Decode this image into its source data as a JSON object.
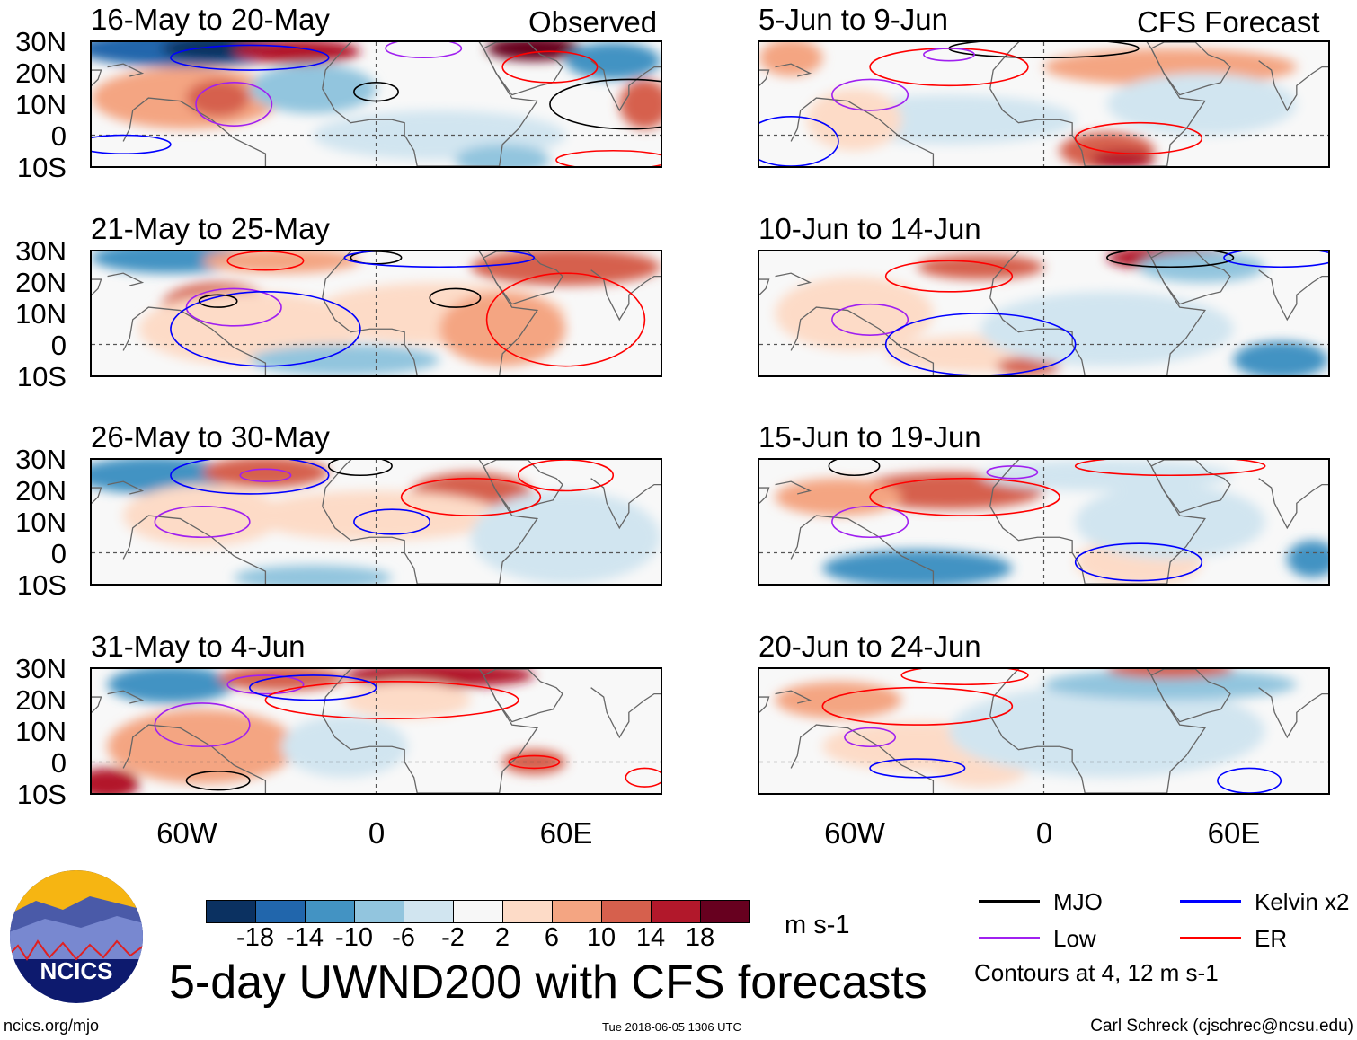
{
  "title": "5-day UWND200 with CFS forecasts",
  "units": "m s-1",
  "site": "ncics.org/mjo",
  "logo_text": "NCICS",
  "timestamp": "Tue 2018-06-05 1306 UTC",
  "author": "Carl Schreck (cjschrec@ncsu.edu)",
  "chart_data": {
    "type": "heatmap",
    "variable": "200-hPa zonal wind anomaly",
    "observed_label": "Observed",
    "forecast_label": "CFS Forecast",
    "panels_observed": [
      "16-May to 20-May",
      "21-May to 25-May",
      "26-May to 30-May",
      "31-May to 4-Jun"
    ],
    "panels_forecast": [
      "5-Jun to 9-Jun",
      "10-Jun to 14-Jun",
      "15-Jun to 19-Jun",
      "20-Jun to 24-Jun"
    ],
    "lat_ticks": [
      "30N",
      "20N",
      "10N",
      "0",
      "10S"
    ],
    "lon_ticks": [
      "60W",
      "0",
      "60E"
    ],
    "lat_range": [
      -10,
      30
    ],
    "lon_range": [
      -90,
      90
    ],
    "colorbar_levels": [
      "-18",
      "-14",
      "-10",
      "-6",
      "-2",
      "2",
      "6",
      "10",
      "14",
      "18"
    ],
    "colorbar_colors": [
      "#0b3161",
      "#2166ac",
      "#4393c3",
      "#92c5de",
      "#d1e5f0",
      "#f7f7f7",
      "#fddbc7",
      "#f4a582",
      "#d6604d",
      "#b2182b",
      "#67001f"
    ],
    "legend": [
      {
        "label": "MJO",
        "color": "#000000"
      },
      {
        "label": "Kelvin x2",
        "color": "#0000ff"
      },
      {
        "label": "Low",
        "color": "#a020f0"
      },
      {
        "label": "ER",
        "color": "#ff0000"
      }
    ],
    "contour_note": "Contours at 4, 12 m s-1"
  }
}
